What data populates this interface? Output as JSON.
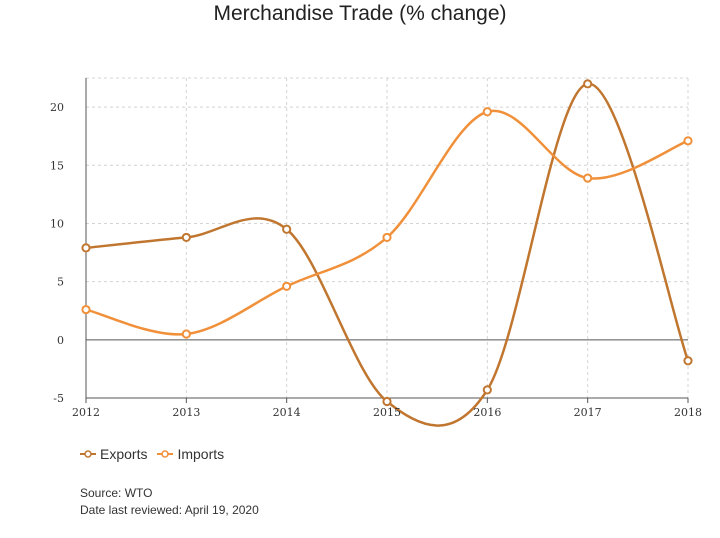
{
  "chart_data": {
    "type": "line",
    "title": "Merchandise Trade (% change)",
    "xlabel": "",
    "ylabel": "",
    "x": [
      "2012",
      "2013",
      "2014",
      "2015",
      "2016",
      "2017",
      "2018"
    ],
    "ylim": [
      -5,
      22.5
    ],
    "yticks": [
      -5,
      0,
      5,
      10,
      15,
      20
    ],
    "grid": true,
    "legend_position": "bottom-left",
    "series": [
      {
        "name": "Exports",
        "color": "#c0762f",
        "values": [
          7.9,
          8.8,
          9.5,
          -5.3,
          -4.3,
          22.0,
          -1.8
        ]
      },
      {
        "name": "Imports",
        "color": "#f0903a",
        "values": [
          2.6,
          0.5,
          4.6,
          8.8,
          19.6,
          13.9,
          17.1
        ]
      }
    ]
  },
  "footer": {
    "source": "Source: WTO",
    "reviewed": "Date last reviewed: April 19, 2020"
  }
}
